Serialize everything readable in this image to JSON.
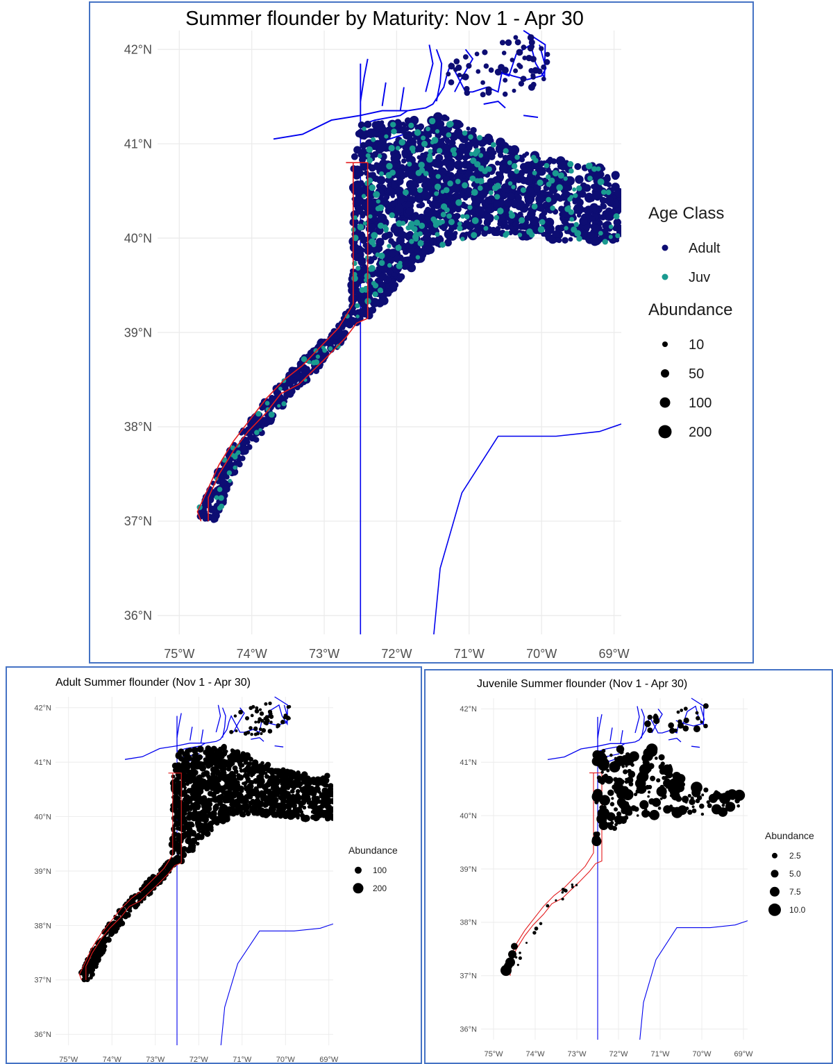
{
  "maps": [
    {
      "id": "combined",
      "title": "Summer flounder by Maturity: Nov 1 - Apr 30",
      "lon_range": [
        -75.3,
        -68.9
      ],
      "lat_range": [
        35.8,
        42.2
      ],
      "x_ticks": [
        "75°W",
        "74°W",
        "73°W",
        "72°W",
        "71°W",
        "70°W",
        "69°W"
      ],
      "y_ticks": [
        "42°N",
        "41°N",
        "40°N",
        "39°N",
        "38°N",
        "37°N",
        "36°N"
      ],
      "legend_color_title": "Age Class",
      "legend_color_items": [
        {
          "label": "Adult",
          "color": "#0d0d73"
        },
        {
          "label": "Juv",
          "color": "#1a9a90"
        }
      ],
      "legend_size_title": "Abundance",
      "legend_size_items": [
        "10",
        "50",
        "100",
        "200"
      ]
    },
    {
      "id": "adult",
      "title": "Adult Summer flounder (Nov 1 - Apr 30)",
      "x_ticks": [
        "75°W",
        "74°W",
        "73°W",
        "72°W",
        "71°W",
        "70°W",
        "69°W"
      ],
      "y_ticks": [
        "42°N",
        "41°N",
        "40°N",
        "39°N",
        "38°N",
        "37°N",
        "36°N"
      ],
      "legend_size_title": "Abundance",
      "legend_size_items": [
        "100",
        "200"
      ]
    },
    {
      "id": "juvenile",
      "title": "Juvenile Summer flounder (Nov 1 - Apr 30)",
      "x_ticks": [
        "75°W",
        "74°W",
        "73°W",
        "72°W",
        "71°W",
        "70°W",
        "69°W"
      ],
      "y_ticks": [
        "42°N",
        "41°N",
        "40°N",
        "39°N",
        "38°N",
        "37°N",
        "36°N"
      ],
      "legend_size_title": "Abundance",
      "legend_size_items": [
        "2.5",
        "5.0",
        "7.5",
        "10.0"
      ]
    }
  ],
  "colors": {
    "coastline": "#0000ee",
    "boundary": "#e31a1c",
    "adult_points": "#0d0d73",
    "juvenile_points": "#1a9a90",
    "single_points": "#000000",
    "grid": "#ebebeb"
  }
}
